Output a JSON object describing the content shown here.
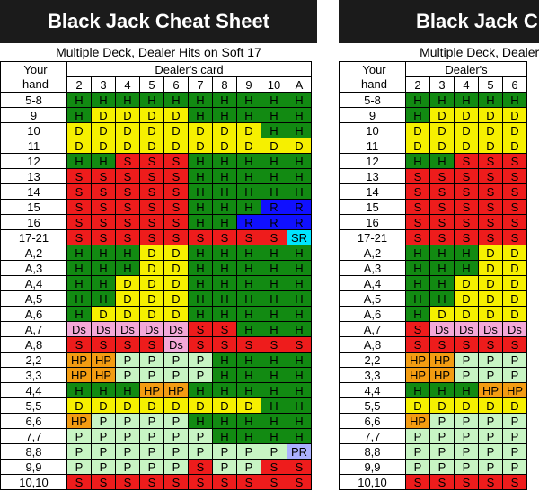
{
  "cards": [
    "2",
    "3",
    "4",
    "5",
    "6",
    "7",
    "8",
    "9",
    "10",
    "A"
  ],
  "colors": {
    "H": "#128a12",
    "D": "#f6f000",
    "S": "#ee1c1c",
    "R": "#1010ff",
    "SR": "#00e5ff",
    "Ds": "#f4a8d8",
    "HP": "#f39c12",
    "P": "#c8f5c4",
    "PR": "#aab0ff"
  },
  "left": {
    "title": "Black Jack Cheat Sheet",
    "subtitle": "Multiple Deck, Dealer Hits on Soft 17",
    "header_your": "Your",
    "header_hand": "hand",
    "header_dealer": "Dealer's card",
    "rows": [
      {
        "hand": "5-8",
        "cells": [
          "H",
          "H",
          "H",
          "H",
          "H",
          "H",
          "H",
          "H",
          "H",
          "H"
        ]
      },
      {
        "hand": "9",
        "cells": [
          "H",
          "D",
          "D",
          "D",
          "D",
          "H",
          "H",
          "H",
          "H",
          "H"
        ]
      },
      {
        "hand": "10",
        "cells": [
          "D",
          "D",
          "D",
          "D",
          "D",
          "D",
          "D",
          "D",
          "H",
          "H"
        ]
      },
      {
        "hand": "11",
        "cells": [
          "D",
          "D",
          "D",
          "D",
          "D",
          "D",
          "D",
          "D",
          "D",
          "D"
        ]
      },
      {
        "hand": "12",
        "cells": [
          "H",
          "H",
          "S",
          "S",
          "S",
          "H",
          "H",
          "H",
          "H",
          "H"
        ]
      },
      {
        "hand": "13",
        "cells": [
          "S",
          "S",
          "S",
          "S",
          "S",
          "H",
          "H",
          "H",
          "H",
          "H"
        ]
      },
      {
        "hand": "14",
        "cells": [
          "S",
          "S",
          "S",
          "S",
          "S",
          "H",
          "H",
          "H",
          "H",
          "H"
        ]
      },
      {
        "hand": "15",
        "cells": [
          "S",
          "S",
          "S",
          "S",
          "S",
          "H",
          "H",
          "H",
          "R",
          "R"
        ]
      },
      {
        "hand": "16",
        "cells": [
          "S",
          "S",
          "S",
          "S",
          "S",
          "H",
          "H",
          "R",
          "R",
          "R"
        ]
      },
      {
        "hand": "17-21",
        "cells": [
          "S",
          "S",
          "S",
          "S",
          "S",
          "S",
          "S",
          "S",
          "S",
          "SR"
        ]
      },
      {
        "hand": "A,2",
        "cells": [
          "H",
          "H",
          "H",
          "D",
          "D",
          "H",
          "H",
          "H",
          "H",
          "H"
        ]
      },
      {
        "hand": "A,3",
        "cells": [
          "H",
          "H",
          "H",
          "D",
          "D",
          "H",
          "H",
          "H",
          "H",
          "H"
        ]
      },
      {
        "hand": "A,4",
        "cells": [
          "H",
          "H",
          "D",
          "D",
          "D",
          "H",
          "H",
          "H",
          "H",
          "H"
        ]
      },
      {
        "hand": "A,5",
        "cells": [
          "H",
          "H",
          "D",
          "D",
          "D",
          "H",
          "H",
          "H",
          "H",
          "H"
        ]
      },
      {
        "hand": "A,6",
        "cells": [
          "H",
          "D",
          "D",
          "D",
          "D",
          "H",
          "H",
          "H",
          "H",
          "H"
        ]
      },
      {
        "hand": "A,7",
        "cells": [
          "Ds",
          "Ds",
          "Ds",
          "Ds",
          "Ds",
          "S",
          "S",
          "H",
          "H",
          "H"
        ]
      },
      {
        "hand": "A,8",
        "cells": [
          "S",
          "S",
          "S",
          "S",
          "Ds",
          "S",
          "S",
          "S",
          "S",
          "S"
        ]
      },
      {
        "hand": "2,2",
        "cells": [
          "HP",
          "HP",
          "P",
          "P",
          "P",
          "P",
          "H",
          "H",
          "H",
          "H"
        ]
      },
      {
        "hand": "3,3",
        "cells": [
          "HP",
          "HP",
          "P",
          "P",
          "P",
          "P",
          "H",
          "H",
          "H",
          "H"
        ]
      },
      {
        "hand": "4,4",
        "cells": [
          "H",
          "H",
          "H",
          "HP",
          "HP",
          "H",
          "H",
          "H",
          "H",
          "H"
        ]
      },
      {
        "hand": "5,5",
        "cells": [
          "D",
          "D",
          "D",
          "D",
          "D",
          "D",
          "D",
          "D",
          "H",
          "H"
        ]
      },
      {
        "hand": "6,6",
        "cells": [
          "HP",
          "P",
          "P",
          "P",
          "P",
          "H",
          "H",
          "H",
          "H",
          "H"
        ]
      },
      {
        "hand": "7,7",
        "cells": [
          "P",
          "P",
          "P",
          "P",
          "P",
          "P",
          "H",
          "H",
          "H",
          "H"
        ]
      },
      {
        "hand": "8,8",
        "cells": [
          "P",
          "P",
          "P",
          "P",
          "P",
          "P",
          "P",
          "P",
          "P",
          "PR"
        ]
      },
      {
        "hand": "9,9",
        "cells": [
          "P",
          "P",
          "P",
          "P",
          "P",
          "S",
          "P",
          "P",
          "S",
          "S"
        ]
      },
      {
        "hand": "10,10",
        "cells": [
          "S",
          "S",
          "S",
          "S",
          "S",
          "S",
          "S",
          "S",
          "S",
          "S"
        ]
      }
    ]
  },
  "right": {
    "title": "Black Jack Cheat",
    "subtitle": "Multiple Deck, Dealer Stanc",
    "header_your": "Your",
    "header_hand": "hand",
    "header_dealer": "Dealer's",
    "rows": [
      {
        "hand": "5-8",
        "cells": [
          "H",
          "H",
          "H",
          "H",
          "H"
        ]
      },
      {
        "hand": "9",
        "cells": [
          "H",
          "D",
          "D",
          "D",
          "D"
        ]
      },
      {
        "hand": "10",
        "cells": [
          "D",
          "D",
          "D",
          "D",
          "D"
        ]
      },
      {
        "hand": "11",
        "cells": [
          "D",
          "D",
          "D",
          "D",
          "D"
        ]
      },
      {
        "hand": "12",
        "cells": [
          "H",
          "H",
          "S",
          "S",
          "S"
        ]
      },
      {
        "hand": "13",
        "cells": [
          "S",
          "S",
          "S",
          "S",
          "S"
        ]
      },
      {
        "hand": "14",
        "cells": [
          "S",
          "S",
          "S",
          "S",
          "S"
        ]
      },
      {
        "hand": "15",
        "cells": [
          "S",
          "S",
          "S",
          "S",
          "S"
        ]
      },
      {
        "hand": "16",
        "cells": [
          "S",
          "S",
          "S",
          "S",
          "S"
        ]
      },
      {
        "hand": "17-21",
        "cells": [
          "S",
          "S",
          "S",
          "S",
          "S"
        ]
      },
      {
        "hand": "A,2",
        "cells": [
          "H",
          "H",
          "H",
          "D",
          "D"
        ]
      },
      {
        "hand": "A,3",
        "cells": [
          "H",
          "H",
          "H",
          "D",
          "D"
        ]
      },
      {
        "hand": "A,4",
        "cells": [
          "H",
          "H",
          "D",
          "D",
          "D"
        ]
      },
      {
        "hand": "A,5",
        "cells": [
          "H",
          "H",
          "D",
          "D",
          "D"
        ]
      },
      {
        "hand": "A,6",
        "cells": [
          "H",
          "D",
          "D",
          "D",
          "D"
        ]
      },
      {
        "hand": "A,7",
        "cells": [
          "S",
          "Ds",
          "Ds",
          "Ds",
          "Ds"
        ]
      },
      {
        "hand": "A,8",
        "cells": [
          "S",
          "S",
          "S",
          "S",
          "S"
        ]
      },
      {
        "hand": "2,2",
        "cells": [
          "HP",
          "HP",
          "P",
          "P",
          "P"
        ]
      },
      {
        "hand": "3,3",
        "cells": [
          "HP",
          "HP",
          "P",
          "P",
          "P"
        ]
      },
      {
        "hand": "4,4",
        "cells": [
          "H",
          "H",
          "H",
          "HP",
          "HP"
        ]
      },
      {
        "hand": "5,5",
        "cells": [
          "D",
          "D",
          "D",
          "D",
          "D"
        ]
      },
      {
        "hand": "6,6",
        "cells": [
          "HP",
          "P",
          "P",
          "P",
          "P"
        ]
      },
      {
        "hand": "7,7",
        "cells": [
          "P",
          "P",
          "P",
          "P",
          "P"
        ]
      },
      {
        "hand": "8,8",
        "cells": [
          "P",
          "P",
          "P",
          "P",
          "P"
        ]
      },
      {
        "hand": "9,9",
        "cells": [
          "P",
          "P",
          "P",
          "P",
          "P"
        ]
      },
      {
        "hand": "10,10",
        "cells": [
          "S",
          "S",
          "S",
          "S",
          "S"
        ]
      }
    ]
  }
}
